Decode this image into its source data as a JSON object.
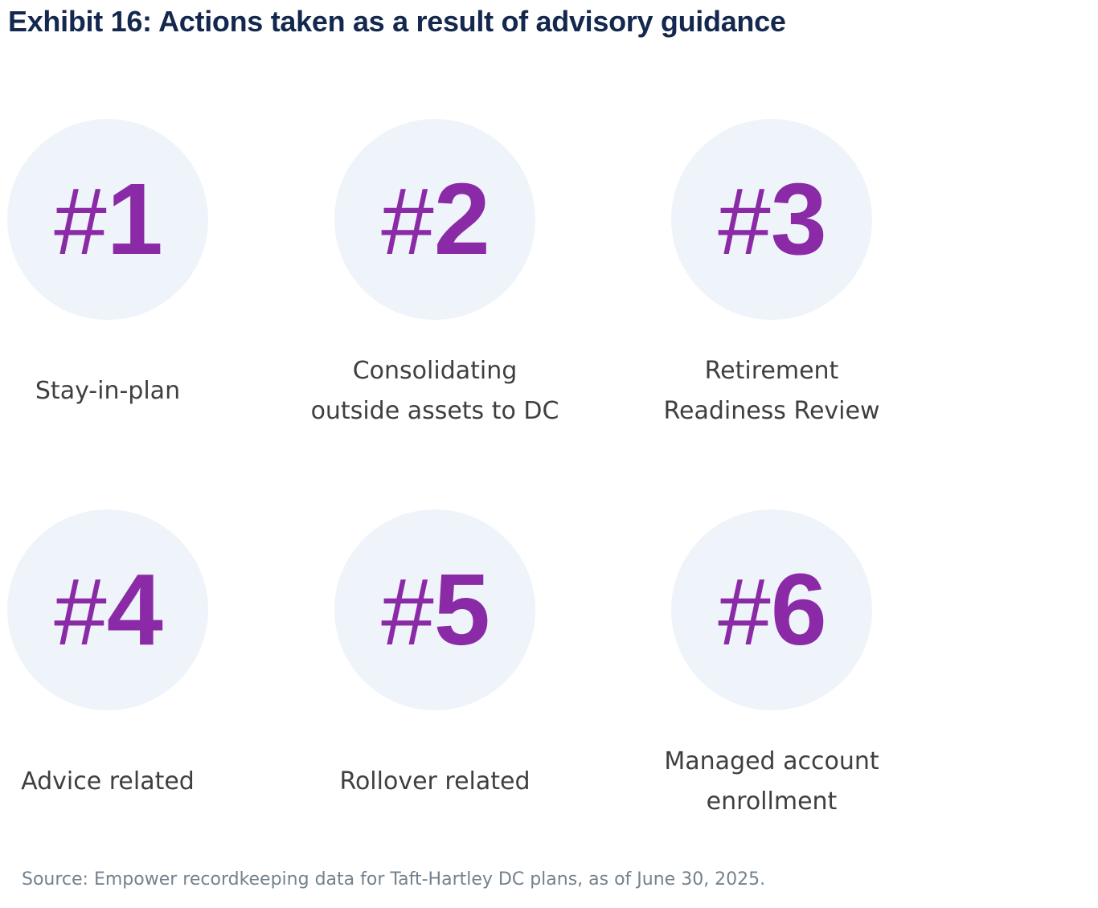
{
  "title": "Exhibit 16: Actions taken as a result of advisory guidance",
  "items": [
    {
      "hash": "#",
      "digit": "1",
      "label": "Stay-in-plan"
    },
    {
      "hash": "#",
      "digit": "2",
      "label": "Consolidating\noutside assets to DC"
    },
    {
      "hash": "#",
      "digit": "3",
      "label": "Retirement\nReadiness Review"
    },
    {
      "hash": "#",
      "digit": "4",
      "label": "Advice related"
    },
    {
      "hash": "#",
      "digit": "5",
      "label": "Rollover related"
    },
    {
      "hash": "#",
      "digit": "6",
      "label": "Managed account\nenrollment"
    }
  ],
  "source_note": "Source: Empower recordkeeping data for Taft-Hartley DC plans, as of June 30, 2025.",
  "colors": {
    "accent_purple": "#8B2AA6",
    "circle_bg": "#EEF4F9",
    "title_navy": "#14284F",
    "label_gray": "#3F3F3F",
    "source_gray": "#74828E"
  }
}
